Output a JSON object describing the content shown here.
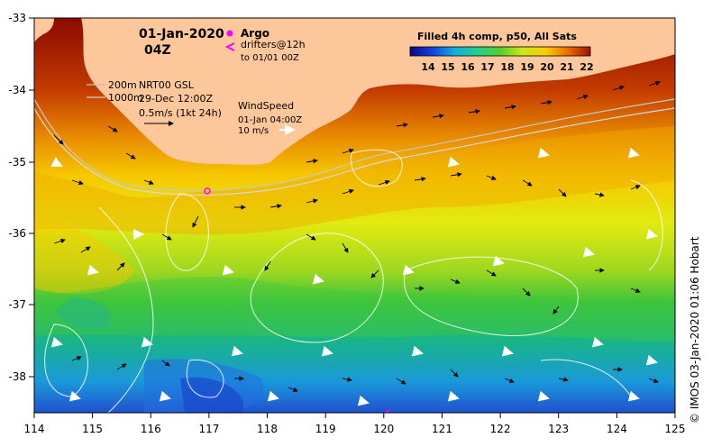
{
  "map": {
    "date": "01-Jan-2020",
    "hour": "04Z",
    "argo_label": "Argo",
    "drifters_label": "drifters@12h",
    "drifters_to": "to 01/01 00Z",
    "isobath_200": "200m",
    "isobath_1000": "1000m",
    "gsl_title": "NRT00 GSL",
    "gsl_date": "29-Dec 12:00Z",
    "gsl_scale": "0.5m/s (1kt 24h)",
    "wind_title": "WindSpeed",
    "wind_date": "01-Jan 04:00Z",
    "wind_scale": "10 m/s",
    "colorbar_title": "Filled 4h comp, p50, All Sats",
    "colorbar_ticks": [
      "14",
      "15",
      "16",
      "17",
      "18",
      "19",
      "20",
      "21",
      "22"
    ],
    "credit": "© IMOS 03-Jan-2020 01:06 Hobart",
    "lon_ticks": [
      "114",
      "115",
      "116",
      "117",
      "118",
      "119",
      "120",
      "121",
      "122",
      "123",
      "124",
      "125"
    ],
    "lat_ticks": [
      "-33",
      "-34",
      "-35",
      "-36",
      "-37",
      "-38"
    ],
    "colors": {
      "land": "#fcc79b",
      "argo": "#ff00ff",
      "sst_cold": "#1010c0",
      "sst_warm": "#8a0000"
    }
  }
}
